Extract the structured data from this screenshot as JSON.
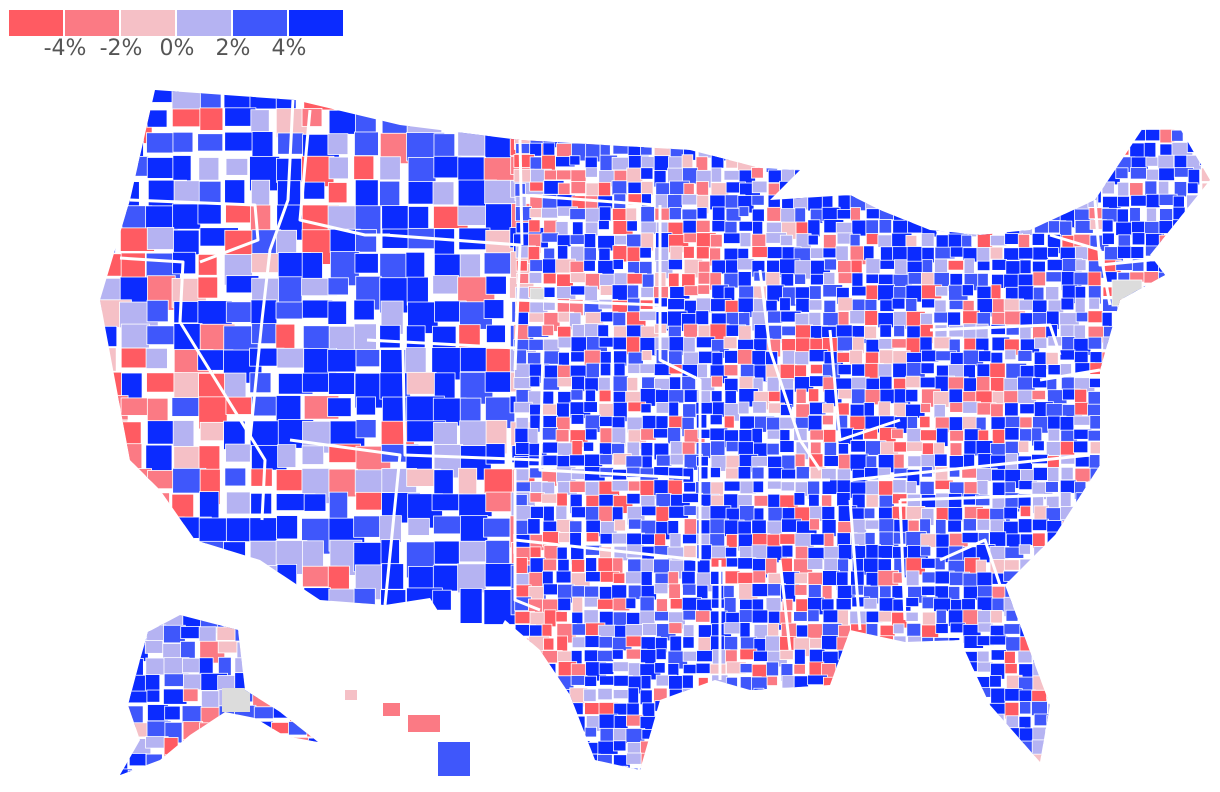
{
  "legend": {
    "bins": [
      {
        "color": "#ff5b62",
        "label": ""
      },
      {
        "color": "#fb7a84",
        "label": "-4%"
      },
      {
        "color": "#f5c0c6",
        "label": "-2%"
      },
      {
        "color": "#b5b3f2",
        "label": "0%"
      },
      {
        "color": "#3f57fb",
        "label": "2%"
      },
      {
        "color": "#0b2bff",
        "label": "4%"
      }
    ]
  },
  "colors": {
    "strong_red": "#ff5b62",
    "red": "#fb7a84",
    "light_red": "#f5c0c6",
    "light_blue": "#b5b3f2",
    "blue": "#3f57fb",
    "strong_blue": "#0b2bff",
    "no_data": "#dcdcdc",
    "border": "#ffffff"
  }
}
